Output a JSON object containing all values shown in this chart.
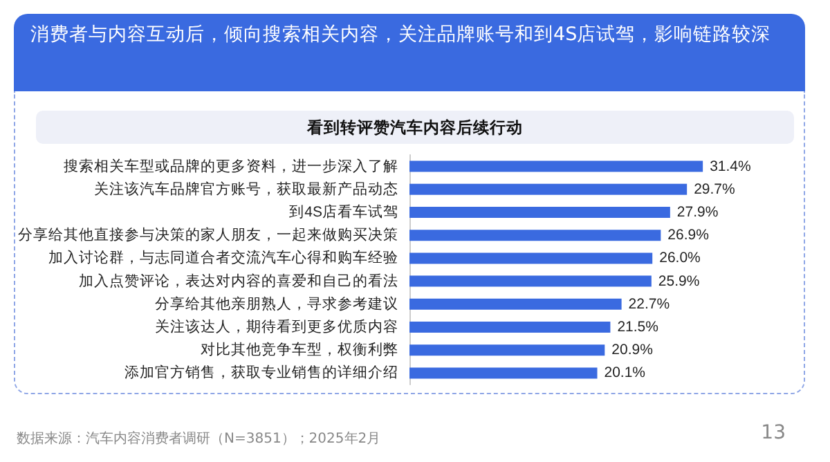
{
  "chart_data": {
    "type": "bar",
    "orientation": "horizontal",
    "title": "消费者与内容互动后，倾向搜索相关内容，关注品牌账号和到4S店试驾，影响链路较深",
    "subtitle": "看到转评赞汽车内容后续行动",
    "categories": [
      "搜索相关车型或品牌的更多资料，进一步深入了解",
      "关注该汽车品牌官方账号，获取最新产品动态",
      "到4S店看车试驾",
      "分享给其他直接参与决策的家人朋友，一起来做购买决策",
      "加入讨论群，与志同道合者交流汽车心得和购车经验",
      "加入点赞评论，表达对内容的喜爱和自己的看法",
      "分享给其他亲朋熟人，寻求参考建议",
      "关注该达人，期待看到更多优质内容",
      "对比其他竞争车型，权衡利弊",
      "添加官方销售，获取专业销售的详细介绍"
    ],
    "values": [
      31.4,
      29.7,
      27.9,
      26.9,
      26.0,
      25.9,
      22.7,
      21.5,
      20.9,
      20.1
    ],
    "value_labels": [
      "31.4%",
      "29.7%",
      "27.9%",
      "26.9%",
      "26.0%",
      "25.9%",
      "22.7%",
      "21.5%",
      "20.9%",
      "20.1%"
    ],
    "color": "#3a6ae0",
    "annotations": [
      "数据来源：汽车内容消费者调研（N=3851）；2025年2月",
      "13"
    ]
  }
}
